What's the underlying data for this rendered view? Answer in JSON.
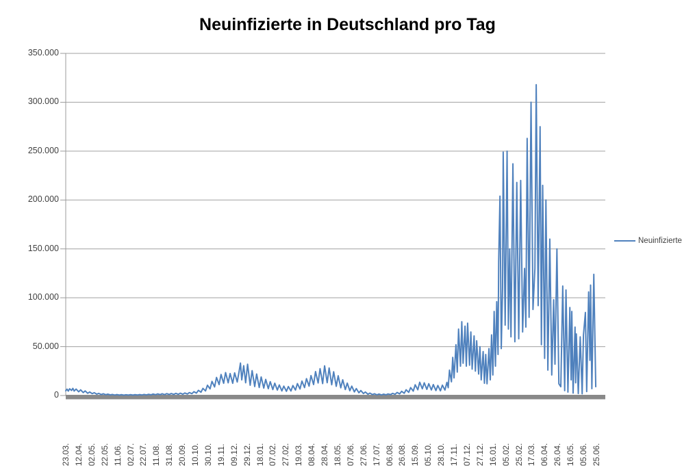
{
  "chart_data": {
    "type": "line",
    "title": "Neuinfizierte in Deutschland pro Tag",
    "xlabel": "",
    "ylabel": "",
    "grid": "horizontal",
    "legend_position": "right",
    "series": [
      {
        "name": "Neuinfizierte",
        "color": "#4F81BD"
      }
    ],
    "y_axis": {
      "min": 0,
      "max": 350000,
      "interval": 50000,
      "tick_labels": [
        "350.000",
        "300.000",
        "250.000",
        "200.000",
        "150.000",
        "100.000",
        "50.000",
        "0"
      ]
    },
    "x_axis": {
      "tick_labels": [
        "23.03.",
        "12.04.",
        "02.05.",
        "22.05.",
        "11.06.",
        "02.07.",
        "22.07.",
        "11.08.",
        "31.08.",
        "20.09.",
        "10.10.",
        "30.10.",
        "19.11.",
        "09.12.",
        "29.12.",
        "18.01.",
        "07.02.",
        "27.02.",
        "19.03.",
        "08.04.",
        "28.04.",
        "18.05.",
        "07.06.",
        "27.06.",
        "17.07.",
        "06.08.",
        "26.08.",
        "15.09.",
        "05.10.",
        "28.10.",
        "17.11.",
        "07.12.",
        "27.12.",
        "16.01.",
        "05.02.",
        "25.02.",
        "17.03.",
        "06.04.",
        "26.04.",
        "16.05.",
        "05.06.",
        "25.06."
      ],
      "points_per_tick": 20,
      "index_max": 820
    },
    "points": [
      [
        0,
        4800
      ],
      [
        2,
        6500
      ],
      [
        4,
        4500
      ],
      [
        6,
        6900
      ],
      [
        9,
        5200
      ],
      [
        11,
        7300
      ],
      [
        13,
        4600
      ],
      [
        16,
        6600
      ],
      [
        20,
        3800
      ],
      [
        23,
        5800
      ],
      [
        27,
        3000
      ],
      [
        30,
        4700
      ],
      [
        34,
        2300
      ],
      [
        37,
        3600
      ],
      [
        41,
        1900
      ],
      [
        44,
        2900
      ],
      [
        48,
        1400
      ],
      [
        51,
        2200
      ],
      [
        55,
        1000
      ],
      [
        58,
        1800
      ],
      [
        62,
        800
      ],
      [
        65,
        1400
      ],
      [
        69,
        600
      ],
      [
        72,
        1100
      ],
      [
        76,
        500
      ],
      [
        79,
        950
      ],
      [
        83,
        420
      ],
      [
        86,
        880
      ],
      [
        90,
        380
      ],
      [
        93,
        820
      ],
      [
        97,
        430
      ],
      [
        100,
        900
      ],
      [
        104,
        420
      ],
      [
        107,
        860
      ],
      [
        111,
        500
      ],
      [
        114,
        950
      ],
      [
        118,
        560
      ],
      [
        121,
        1100
      ],
      [
        125,
        640
      ],
      [
        128,
        1250
      ],
      [
        132,
        720
      ],
      [
        135,
        1500
      ],
      [
        139,
        820
      ],
      [
        142,
        1650
      ],
      [
        146,
        900
      ],
      [
        149,
        1800
      ],
      [
        153,
        950
      ],
      [
        156,
        1950
      ],
      [
        160,
        1050
      ],
      [
        163,
        2050
      ],
      [
        167,
        1150
      ],
      [
        170,
        2200
      ],
      [
        174,
        1250
      ],
      [
        177,
        2400
      ],
      [
        181,
        1350
      ],
      [
        184,
        2600
      ],
      [
        188,
        1550
      ],
      [
        191,
        3000
      ],
      [
        195,
        1900
      ],
      [
        198,
        3900
      ],
      [
        202,
        2500
      ],
      [
        205,
        5300
      ],
      [
        209,
        3400
      ],
      [
        212,
        7300
      ],
      [
        216,
        4700
      ],
      [
        219,
        10500
      ],
      [
        223,
        6800
      ],
      [
        226,
        14500
      ],
      [
        230,
        8800
      ],
      [
        233,
        18500
      ],
      [
        237,
        11200
      ],
      [
        240,
        21500
      ],
      [
        244,
        12500
      ],
      [
        247,
        23500
      ],
      [
        251,
        13000
      ],
      [
        254,
        22500
      ],
      [
        258,
        12500
      ],
      [
        261,
        23200
      ],
      [
        265,
        13800
      ],
      [
        268,
        25000
      ],
      [
        270,
        33200
      ],
      [
        272,
        16000
      ],
      [
        275,
        30500
      ],
      [
        278,
        13000
      ],
      [
        281,
        32000
      ],
      [
        285,
        10500
      ],
      [
        288,
        25500
      ],
      [
        292,
        9200
      ],
      [
        295,
        22000
      ],
      [
        299,
        8200
      ],
      [
        302,
        19000
      ],
      [
        306,
        7600
      ],
      [
        309,
        16500
      ],
      [
        313,
        7000
      ],
      [
        316,
        14200
      ],
      [
        320,
        6100
      ],
      [
        323,
        12600
      ],
      [
        327,
        5600
      ],
      [
        330,
        10800
      ],
      [
        334,
        4700
      ],
      [
        337,
        9600
      ],
      [
        341,
        4300
      ],
      [
        344,
        9200
      ],
      [
        348,
        4600
      ],
      [
        351,
        10200
      ],
      [
        355,
        5600
      ],
      [
        358,
        12200
      ],
      [
        362,
        6700
      ],
      [
        365,
        14800
      ],
      [
        369,
        8100
      ],
      [
        372,
        17300
      ],
      [
        376,
        9600
      ],
      [
        379,
        20400
      ],
      [
        383,
        11200
      ],
      [
        386,
        24500
      ],
      [
        390,
        12800
      ],
      [
        393,
        27500
      ],
      [
        397,
        12200
      ],
      [
        400,
        30400
      ],
      [
        404,
        13100
      ],
      [
        407,
        28200
      ],
      [
        411,
        11000
      ],
      [
        414,
        24300
      ],
      [
        418,
        9400
      ],
      [
        421,
        20200
      ],
      [
        425,
        7900
      ],
      [
        428,
        16100
      ],
      [
        432,
        6100
      ],
      [
        435,
        12700
      ],
      [
        439,
        4900
      ],
      [
        442,
        9600
      ],
      [
        446,
        3700
      ],
      [
        449,
        7100
      ],
      [
        453,
        2800
      ],
      [
        456,
        5100
      ],
      [
        460,
        2000
      ],
      [
        463,
        3600
      ],
      [
        467,
        1300
      ],
      [
        470,
        2500
      ],
      [
        474,
        950
      ],
      [
        477,
        1800
      ],
      [
        481,
        700
      ],
      [
        484,
        1500
      ],
      [
        488,
        600
      ],
      [
        491,
        1400
      ],
      [
        495,
        700
      ],
      [
        498,
        1600
      ],
      [
        502,
        950
      ],
      [
        505,
        2200
      ],
      [
        509,
        1300
      ],
      [
        512,
        3100
      ],
      [
        516,
        1700
      ],
      [
        519,
        4300
      ],
      [
        523,
        2300
      ],
      [
        526,
        5900
      ],
      [
        530,
        3200
      ],
      [
        533,
        8100
      ],
      [
        537,
        4500
      ],
      [
        540,
        11000
      ],
      [
        544,
        5900
      ],
      [
        547,
        13600
      ],
      [
        551,
        6900
      ],
      [
        554,
        13000
      ],
      [
        558,
        6300
      ],
      [
        561,
        12100
      ],
      [
        565,
        5700
      ],
      [
        568,
        11200
      ],
      [
        572,
        5100
      ],
      [
        575,
        10300
      ],
      [
        579,
        4800
      ],
      [
        582,
        10600
      ],
      [
        586,
        5600
      ],
      [
        589,
        13500
      ],
      [
        591,
        8000
      ],
      [
        593,
        26000
      ],
      [
        596,
        14000
      ],
      [
        598,
        39000
      ],
      [
        600,
        18000
      ],
      [
        603,
        52000
      ],
      [
        605,
        24000
      ],
      [
        607,
        68000
      ],
      [
        610,
        30000
      ],
      [
        612,
        75500
      ],
      [
        614,
        33000
      ],
      [
        617,
        71000
      ],
      [
        619,
        30000
      ],
      [
        621,
        74000
      ],
      [
        624,
        31000
      ],
      [
        626,
        65000
      ],
      [
        628,
        27000
      ],
      [
        631,
        61000
      ],
      [
        633,
        25000
      ],
      [
        635,
        56000
      ],
      [
        638,
        22000
      ],
      [
        640,
        50000
      ],
      [
        642,
        16000
      ],
      [
        645,
        45000
      ],
      [
        647,
        12500
      ],
      [
        649,
        42000
      ],
      [
        651,
        12000
      ],
      [
        654,
        48000
      ],
      [
        656,
        16000
      ],
      [
        658,
        62000
      ],
      [
        660,
        21000
      ],
      [
        662,
        86000
      ],
      [
        664,
        30000
      ],
      [
        666,
        96000
      ],
      [
        668,
        42000
      ],
      [
        669,
        137000
      ],
      [
        671,
        204000
      ],
      [
        673,
        48000
      ],
      [
        675,
        110000
      ],
      [
        676,
        249000
      ],
      [
        679,
        72000
      ],
      [
        682,
        250000
      ],
      [
        684,
        68000
      ],
      [
        686,
        150000
      ],
      [
        688,
        60000
      ],
      [
        691,
        237000
      ],
      [
        694,
        55000
      ],
      [
        697,
        218000
      ],
      [
        700,
        58000
      ],
      [
        703,
        220000
      ],
      [
        706,
        65000
      ],
      [
        709,
        130000
      ],
      [
        711,
        70000
      ],
      [
        713,
        263000
      ],
      [
        716,
        80000
      ],
      [
        719,
        300000
      ],
      [
        722,
        88000
      ],
      [
        725,
        130000
      ],
      [
        727,
        318000
      ],
      [
        730,
        92000
      ],
      [
        733,
        275000
      ],
      [
        735,
        52000
      ],
      [
        737,
        215000
      ],
      [
        740,
        38000
      ],
      [
        742,
        200000
      ],
      [
        745,
        26000
      ],
      [
        748,
        160000
      ],
      [
        751,
        21000
      ],
      [
        754,
        98000
      ],
      [
        756,
        32000
      ],
      [
        759,
        150000
      ],
      [
        762,
        12000
      ],
      [
        765,
        9000
      ],
      [
        768,
        112000
      ],
      [
        771,
        5000
      ],
      [
        773,
        108000
      ],
      [
        776,
        3500
      ],
      [
        779,
        90000
      ],
      [
        781,
        16000
      ],
      [
        782,
        86000
      ],
      [
        784,
        2500
      ],
      [
        787,
        70000
      ],
      [
        788,
        13000
      ],
      [
        789,
        63000
      ],
      [
        792,
        2000
      ],
      [
        795,
        60000
      ],
      [
        798,
        1800
      ],
      [
        800,
        62000
      ],
      [
        803,
        85000
      ],
      [
        805,
        4000
      ],
      [
        808,
        106000
      ],
      [
        810,
        36000
      ],
      [
        811,
        113000
      ],
      [
        813,
        7000
      ],
      [
        816,
        124000
      ],
      [
        819,
        9000
      ]
    ],
    "colors": {
      "line": "#4F81BD",
      "gridline": "#A0A0A0",
      "axis_line": "#9b9b9b",
      "axis_bar": "#898989",
      "text": "#404040",
      "title": "#000000",
      "background": "#ffffff"
    }
  }
}
